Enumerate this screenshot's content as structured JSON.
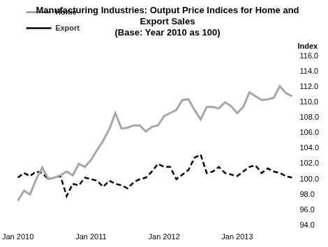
{
  "chart_data": {
    "type": "line",
    "title": "Manufacturing Industries: Output Price Indices for Home and Export Sales",
    "subtitle": "(Base: Year 2010 as 100)",
    "y_label": "Index",
    "categories": [
      "Jan 2010",
      null,
      null,
      null,
      null,
      null,
      null,
      null,
      null,
      null,
      null,
      null,
      "Jan 2011",
      null,
      null,
      null,
      null,
      null,
      null,
      null,
      null,
      null,
      null,
      null,
      "Jan 2012",
      null,
      null,
      null,
      null,
      null,
      null,
      null,
      null,
      null,
      null,
      null,
      "Jan 2013",
      null,
      null,
      null,
      null,
      null,
      null,
      null,
      null,
      null
    ],
    "series": [
      {
        "name": "Home",
        "color": "#a6a6a6",
        "line_style": "solid",
        "values": [
          97.2,
          98.5,
          98.0,
          100.0,
          101.5,
          100.0,
          100.2,
          100.5,
          101.0,
          100.5,
          102.0,
          101.6,
          102.5,
          103.8,
          105.0,
          106.5,
          108.6,
          106.6,
          106.7,
          107.0,
          107.0,
          106.2,
          106.8,
          107.0,
          108.2,
          108.6,
          109.0,
          110.3,
          110.4,
          109.0,
          107.8,
          109.4,
          109.4,
          109.2,
          110.0,
          109.5,
          108.6,
          109.4,
          111.3,
          110.8,
          110.3,
          110.4,
          110.6,
          112.1,
          111.2,
          110.8
        ]
      },
      {
        "name": "Export",
        "color": "#000000",
        "line_style": "dashed",
        "values": [
          100.2,
          100.8,
          100.4,
          101.0,
          100.8,
          100.0,
          100.2,
          100.4,
          97.8,
          99.4,
          99.2,
          100.2,
          100.0,
          99.8,
          99.0,
          99.8,
          99.4,
          99.2,
          98.8,
          99.6,
          100.0,
          100.2,
          101.0,
          102.0,
          101.6,
          101.6,
          100.0,
          100.6,
          101.2,
          102.8,
          103.2,
          100.8,
          101.0,
          101.6,
          100.8,
          100.6,
          100.4,
          101.0,
          101.6,
          101.8,
          100.8,
          101.4,
          101.0,
          100.8,
          100.4,
          100.2
        ]
      }
    ],
    "ylim": [
      94,
      116
    ],
    "yticks": [
      {
        "value": 94,
        "label": "94.0"
      },
      {
        "value": 96,
        "label": "96.0"
      },
      {
        "value": 98,
        "label": "98.0"
      },
      {
        "value": 100,
        "label": "100.0"
      },
      {
        "value": 102,
        "label": "102.0"
      },
      {
        "value": 104,
        "label": "104.0"
      },
      {
        "value": 106,
        "label": "106.0"
      },
      {
        "value": 108,
        "label": "108.0"
      },
      {
        "value": 110,
        "label": "110.0"
      },
      {
        "value": 112,
        "label": "112.0"
      },
      {
        "value": 114,
        "label": "114.0"
      },
      {
        "value": 116,
        "label": "116.0"
      }
    ],
    "grid": false,
    "legend": "top-left"
  }
}
